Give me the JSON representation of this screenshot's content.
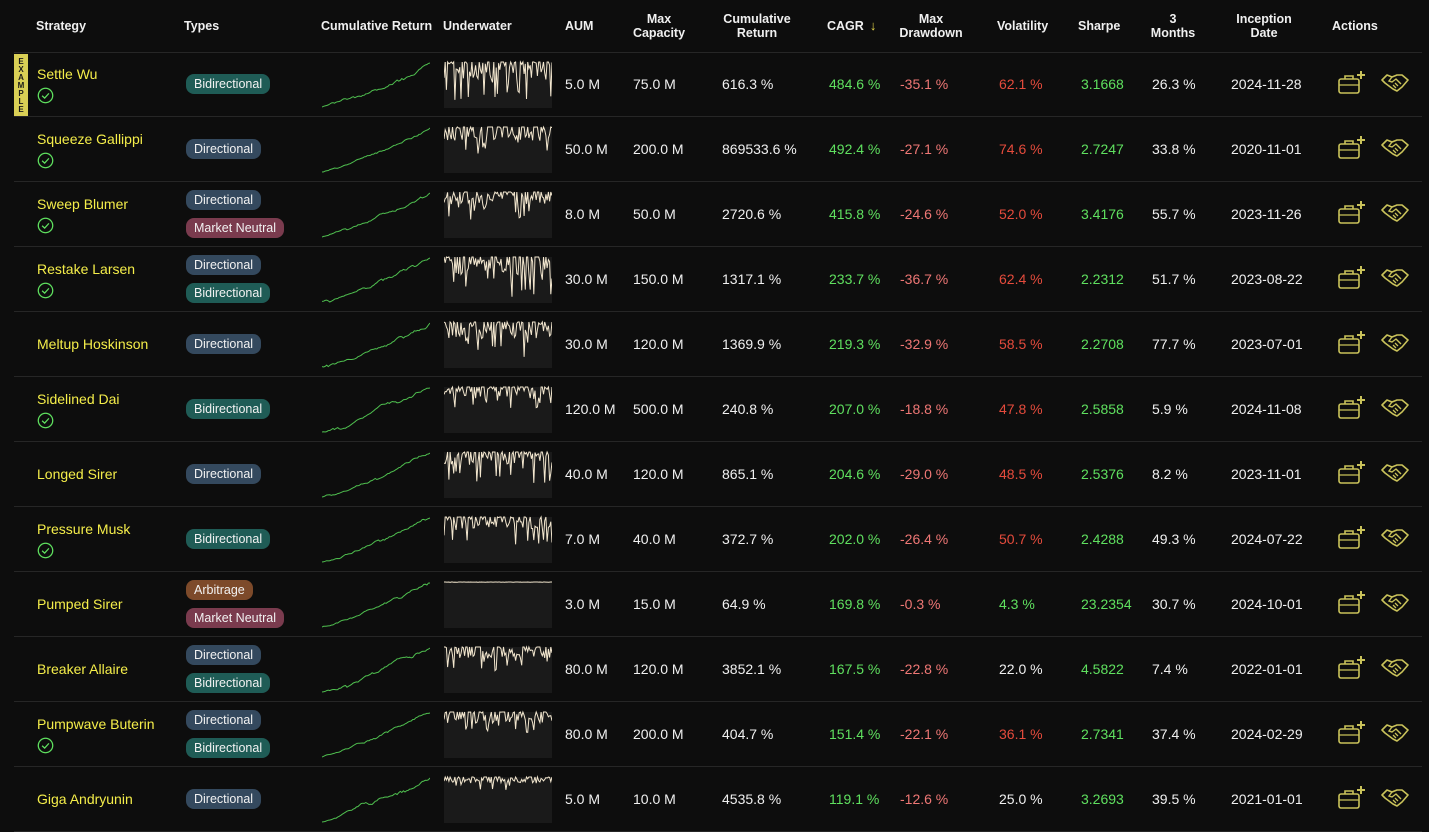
{
  "columns": {
    "strategy": "Strategy",
    "types": "Types",
    "cum_chart": "Cumulative Return",
    "underwater": "Underwater",
    "aum": "AUM",
    "max_cap_1": "Max",
    "max_cap_2": "Capacity",
    "cum_ret_1": "Cumulative",
    "cum_ret_2": "Return",
    "cagr": "CAGR",
    "sort_arrow": "↓",
    "max_dd_1": "Max",
    "max_dd_2": "Drawdown",
    "volatility": "Volatility",
    "sharpe": "Sharpe",
    "m3_1": "3",
    "m3_2": "Months",
    "inception_1": "Inception",
    "inception_2": "Date",
    "actions": "Actions"
  },
  "example_label": "EXAMPLE",
  "rows": [
    {
      "name": "Settle Wu",
      "verified": true,
      "example": true,
      "types": [
        "Bidirectional"
      ],
      "aum": "5.0 M",
      "max_capacity": "75.0 M",
      "cum_return": "616.3 %",
      "cagr": "484.6 %",
      "max_drawdown": "-35.1 %",
      "volatility": "62.1 %",
      "vol_level": "red",
      "sharpe": "3.1668",
      "months3": "26.3 %",
      "inception": "2024-11-28"
    },
    {
      "name": "Squeeze Gallippi",
      "verified": true,
      "types": [
        "Directional"
      ],
      "aum": "50.0 M",
      "max_capacity": "200.0 M",
      "cum_return": "869533.6 %",
      "cagr": "492.4 %",
      "max_drawdown": "-27.1 %",
      "volatility": "74.6 %",
      "vol_level": "red",
      "sharpe": "2.7247",
      "months3": "33.8 %",
      "inception": "2020-11-01"
    },
    {
      "name": "Sweep Blumer",
      "verified": true,
      "types": [
        "Directional",
        "Market Neutral"
      ],
      "aum": "8.0 M",
      "max_capacity": "50.0 M",
      "cum_return": "2720.6 %",
      "cagr": "415.8 %",
      "max_drawdown": "-24.6 %",
      "volatility": "52.0 %",
      "vol_level": "red",
      "sharpe": "3.4176",
      "months3": "55.7 %",
      "inception": "2023-11-26"
    },
    {
      "name": "Restake Larsen",
      "verified": true,
      "types": [
        "Directional",
        "Bidirectional"
      ],
      "aum": "30.0 M",
      "max_capacity": "150.0 M",
      "cum_return": "1317.1 %",
      "cagr": "233.7 %",
      "max_drawdown": "-36.7 %",
      "volatility": "62.4 %",
      "vol_level": "red",
      "sharpe": "2.2312",
      "months3": "51.7 %",
      "inception": "2023-08-22"
    },
    {
      "name": "Meltup Hoskinson",
      "verified": false,
      "types": [
        "Directional"
      ],
      "aum": "30.0 M",
      "max_capacity": "120.0 M",
      "cum_return": "1369.9 %",
      "cagr": "219.3 %",
      "max_drawdown": "-32.9 %",
      "volatility": "58.5 %",
      "vol_level": "red",
      "sharpe": "2.2708",
      "months3": "77.7 %",
      "inception": "2023-07-01"
    },
    {
      "name": "Sidelined Dai",
      "verified": true,
      "types": [
        "Bidirectional"
      ],
      "aum": "120.0 M",
      "max_capacity": "500.0 M",
      "cum_return": "240.8 %",
      "cagr": "207.0 %",
      "max_drawdown": "-18.8 %",
      "volatility": "47.8 %",
      "vol_level": "red",
      "sharpe": "2.5858",
      "months3": "5.9 %",
      "inception": "2024-11-08"
    },
    {
      "name": "Longed Sirer",
      "verified": false,
      "types": [
        "Directional"
      ],
      "aum": "40.0 M",
      "max_capacity": "120.0 M",
      "cum_return": "865.1 %",
      "cagr": "204.6 %",
      "max_drawdown": "-29.0 %",
      "volatility": "48.5 %",
      "vol_level": "red",
      "sharpe": "2.5376",
      "months3": "8.2 %",
      "inception": "2023-11-01"
    },
    {
      "name": "Pressure Musk",
      "verified": true,
      "types": [
        "Bidirectional"
      ],
      "aum": "7.0 M",
      "max_capacity": "40.0 M",
      "cum_return": "372.7 %",
      "cagr": "202.0 %",
      "max_drawdown": "-26.4 %",
      "volatility": "50.7 %",
      "vol_level": "red",
      "sharpe": "2.4288",
      "months3": "49.3 %",
      "inception": "2024-07-22"
    },
    {
      "name": "Pumped Sirer",
      "verified": false,
      "types": [
        "Arbitrage",
        "Market Neutral"
      ],
      "aum": "3.0 M",
      "max_capacity": "15.0 M",
      "cum_return": "64.9 %",
      "cagr": "169.8 %",
      "max_drawdown": "-0.3 %",
      "volatility": "4.3 %",
      "vol_level": "green",
      "sharpe": "23.2354",
      "months3": "30.7 %",
      "inception": "2024-10-01"
    },
    {
      "name": "Breaker Allaire",
      "verified": false,
      "types": [
        "Directional",
        "Bidirectional"
      ],
      "aum": "80.0 M",
      "max_capacity": "120.0 M",
      "cum_return": "3852.1 %",
      "cagr": "167.5 %",
      "max_drawdown": "-22.8 %",
      "volatility": "22.0 %",
      "vol_level": "white",
      "sharpe": "4.5822",
      "months3": "7.4 %",
      "inception": "2022-01-01"
    },
    {
      "name": "Pumpwave Buterin",
      "verified": true,
      "types": [
        "Directional",
        "Bidirectional"
      ],
      "aum": "80.0 M",
      "max_capacity": "200.0 M",
      "cum_return": "404.7 %",
      "cagr": "151.4 %",
      "max_drawdown": "-22.1 %",
      "volatility": "36.1 %",
      "vol_level": "red",
      "sharpe": "2.7341",
      "months3": "37.4 %",
      "inception": "2024-02-29"
    },
    {
      "name": "Giga Andryunin",
      "verified": false,
      "types": [
        "Directional"
      ],
      "aum": "5.0 M",
      "max_capacity": "10.0 M",
      "cum_return": "4535.8 %",
      "cagr": "119.1 %",
      "max_drawdown": "-12.6 %",
      "volatility": "25.0 %",
      "vol_level": "white",
      "sharpe": "3.2693",
      "months3": "39.5 %",
      "inception": "2021-01-01"
    }
  ],
  "colors": {
    "accent": "#f5ee4a",
    "positive": "#5fe05f",
    "negative": "#e54b3c",
    "drawdown": "#ef7775",
    "icon": "#c9c25a",
    "underwater_line": "#f3e7cf"
  },
  "icons": {
    "verified": "check-circle-icon",
    "allocate": "briefcase-plus-icon",
    "deal": "handshake-icon"
  }
}
